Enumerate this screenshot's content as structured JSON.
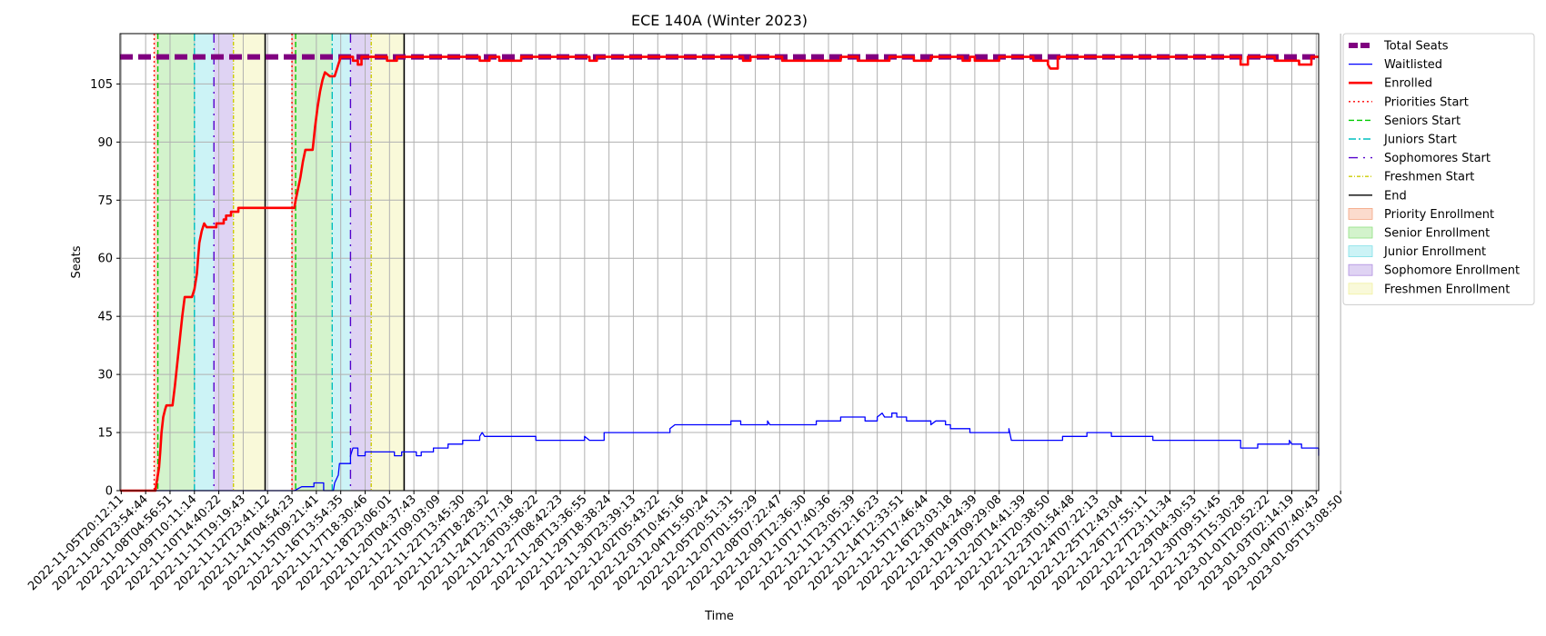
{
  "chart_data": {
    "type": "line",
    "title": "ECE 140A (Winter 2023)",
    "xlabel": "Time",
    "ylabel": "Seats",
    "ylim": [
      0,
      118
    ],
    "yticks": [
      0,
      15,
      30,
      45,
      60,
      75,
      90,
      105
    ],
    "grid": true,
    "legend_position": "outside-top-right",
    "x_tick_labels": [
      "2022-11-05T20:12:11",
      "2022-11-06T23:54:44",
      "2022-11-08T04:56:51",
      "2022-11-09T10:11:14",
      "2022-11-10T14:40:22",
      "2022-11-11T19:19:43",
      "2022-11-12T23:41:12",
      "2022-11-14T04:54:23",
      "2022-11-15T09:21:41",
      "2022-11-16T13:54:35",
      "2022-11-17T18:30:46",
      "2022-11-18T23:06:01",
      "2022-11-20T04:37:43",
      "2022-11-21T09:03:09",
      "2022-11-22T13:45:30",
      "2022-11-23T18:28:32",
      "2022-11-24T23:17:18",
      "2022-11-26T03:58:22",
      "2022-11-27T08:42:23",
      "2022-11-28T13:36:55",
      "2022-11-29T18:38:24",
      "2022-11-30T23:39:13",
      "2022-12-02T05:43:22",
      "2022-12-03T10:45:16",
      "2022-12-04T15:50:24",
      "2022-12-05T20:51:31",
      "2022-12-07T01:55:29",
      "2022-12-08T07:22:47",
      "2022-12-09T12:36:30",
      "2022-12-10T17:40:36",
      "2022-12-11T23:05:39",
      "2022-12-13T12:16:23",
      "2022-12-14T12:33:51",
      "2022-12-15T17:46:44",
      "2022-12-16T23:03:18",
      "2022-12-18T04:24:39",
      "2022-12-19T09:29:08",
      "2022-12-20T14:41:39",
      "2022-12-21T20:38:50",
      "2022-12-23T01:54:48",
      "2022-12-24T07:22:13",
      "2022-12-25T12:43:04",
      "2022-12-26T17:55:11",
      "2022-12-27T23:11:34",
      "2022-12-29T04:30:53",
      "2022-12-30T09:51:45",
      "2022-12-31T15:30:28",
      "2023-01-01T20:52:22",
      "2023-01-03T02:14:19",
      "2023-01-04T07:40:43",
      "2023-01-05T13:08:50"
    ],
    "x_extent": [
      -0.05,
      49.1
    ],
    "series": [
      {
        "name": "Total Seats",
        "color": "#800080",
        "style": "dashed-thick",
        "points": [
          [
            -0.05,
            112
          ],
          [
            49.1,
            112
          ]
        ]
      },
      {
        "name": "Waitlisted",
        "color": "#0000ff",
        "style": "solid-thin",
        "points": [
          [
            -0.05,
            0
          ],
          [
            7.1,
            0
          ],
          [
            7.4,
            1
          ],
          [
            7.9,
            1
          ],
          [
            7.9,
            2
          ],
          [
            8.3,
            2
          ],
          [
            8.3,
            0
          ],
          [
            8.7,
            0
          ],
          [
            8.75,
            2
          ],
          [
            8.9,
            4
          ],
          [
            8.95,
            7
          ],
          [
            9.4,
            7
          ],
          [
            9.4,
            9
          ],
          [
            9.5,
            11
          ],
          [
            9.7,
            11
          ],
          [
            9.7,
            9
          ],
          [
            10.0,
            9
          ],
          [
            10.0,
            10
          ],
          [
            11.2,
            10
          ],
          [
            11.2,
            9
          ],
          [
            11.5,
            9
          ],
          [
            11.5,
            10
          ],
          [
            12.1,
            10
          ],
          [
            12.1,
            9
          ],
          [
            12.3,
            9
          ],
          [
            12.3,
            10
          ],
          [
            12.8,
            10
          ],
          [
            12.8,
            11
          ],
          [
            13.4,
            11
          ],
          [
            13.4,
            12
          ],
          [
            14.0,
            12
          ],
          [
            14.0,
            13
          ],
          [
            14.7,
            13
          ],
          [
            14.7,
            14
          ],
          [
            14.8,
            15
          ],
          [
            14.9,
            14
          ],
          [
            17.0,
            14
          ],
          [
            17.0,
            13
          ],
          [
            19.0,
            13
          ],
          [
            19.0,
            14
          ],
          [
            19.2,
            13
          ],
          [
            19.8,
            13
          ],
          [
            19.8,
            15
          ],
          [
            22.5,
            15
          ],
          [
            22.5,
            16
          ],
          [
            22.7,
            17
          ],
          [
            25.0,
            17
          ],
          [
            25.0,
            18
          ],
          [
            25.4,
            18
          ],
          [
            25.4,
            17
          ],
          [
            26.5,
            17
          ],
          [
            26.5,
            18
          ],
          [
            26.6,
            17
          ],
          [
            28.5,
            17
          ],
          [
            28.5,
            18
          ],
          [
            29.5,
            18
          ],
          [
            29.5,
            19
          ],
          [
            30.5,
            19
          ],
          [
            30.5,
            18
          ],
          [
            31.0,
            18
          ],
          [
            31.0,
            19
          ],
          [
            31.2,
            20
          ],
          [
            31.3,
            19
          ],
          [
            31.6,
            19
          ],
          [
            31.6,
            20
          ],
          [
            31.8,
            20
          ],
          [
            31.8,
            19
          ],
          [
            32.2,
            19
          ],
          [
            32.2,
            18
          ],
          [
            33.2,
            18
          ],
          [
            33.2,
            17
          ],
          [
            33.4,
            18
          ],
          [
            33.8,
            18
          ],
          [
            33.8,
            17
          ],
          [
            34.0,
            17
          ],
          [
            34.0,
            16
          ],
          [
            34.8,
            16
          ],
          [
            34.8,
            15
          ],
          [
            36.4,
            15
          ],
          [
            36.4,
            16
          ],
          [
            36.5,
            13
          ],
          [
            38.6,
            13
          ],
          [
            38.6,
            14
          ],
          [
            39.6,
            14
          ],
          [
            39.6,
            15
          ],
          [
            40.6,
            15
          ],
          [
            40.6,
            14
          ],
          [
            42.3,
            14
          ],
          [
            42.3,
            13
          ],
          [
            45.9,
            13
          ],
          [
            45.9,
            11
          ],
          [
            46.6,
            11
          ],
          [
            46.6,
            12
          ],
          [
            47.9,
            12
          ],
          [
            47.9,
            13
          ],
          [
            48.0,
            12
          ],
          [
            48.4,
            12
          ],
          [
            48.4,
            11
          ],
          [
            49.3,
            11
          ],
          [
            49.3,
            9
          ],
          [
            49.1,
            9
          ]
        ]
      },
      {
        "name": "Enrolled",
        "color": "#ff0000",
        "style": "solid-thick",
        "points": [
          [
            -0.05,
            0
          ],
          [
            1.4,
            0
          ],
          [
            1.45,
            2
          ],
          [
            1.55,
            6
          ],
          [
            1.6,
            10
          ],
          [
            1.65,
            15
          ],
          [
            1.72,
            19
          ],
          [
            1.8,
            21
          ],
          [
            1.85,
            22
          ],
          [
            2.1,
            22
          ],
          [
            2.2,
            27
          ],
          [
            2.3,
            33
          ],
          [
            2.4,
            39
          ],
          [
            2.5,
            45
          ],
          [
            2.6,
            50
          ],
          [
            2.9,
            50
          ],
          [
            3.0,
            52
          ],
          [
            3.1,
            56
          ],
          [
            3.15,
            60
          ],
          [
            3.2,
            64
          ],
          [
            3.3,
            67
          ],
          [
            3.4,
            69
          ],
          [
            3.5,
            68
          ],
          [
            3.9,
            68
          ],
          [
            3.9,
            69
          ],
          [
            4.2,
            69
          ],
          [
            4.2,
            70
          ],
          [
            4.3,
            70
          ],
          [
            4.3,
            71
          ],
          [
            4.5,
            71
          ],
          [
            4.5,
            72
          ],
          [
            4.8,
            72
          ],
          [
            4.8,
            73
          ],
          [
            7.1,
            73
          ],
          [
            7.15,
            75
          ],
          [
            7.25,
            78
          ],
          [
            7.35,
            81
          ],
          [
            7.45,
            85
          ],
          [
            7.55,
            88
          ],
          [
            7.85,
            88
          ],
          [
            7.95,
            94
          ],
          [
            8.05,
            99
          ],
          [
            8.15,
            103
          ],
          [
            8.25,
            106
          ],
          [
            8.35,
            108
          ],
          [
            8.55,
            107
          ],
          [
            8.75,
            107
          ],
          [
            8.9,
            110
          ],
          [
            9.0,
            112
          ],
          [
            9.5,
            112
          ],
          [
            9.5,
            111
          ],
          [
            9.7,
            111
          ],
          [
            9.7,
            110
          ],
          [
            9.85,
            110
          ],
          [
            9.85,
            112
          ],
          [
            10.9,
            112
          ],
          [
            10.9,
            111
          ],
          [
            11.3,
            111
          ],
          [
            11.3,
            112
          ],
          [
            14.7,
            112
          ],
          [
            14.7,
            111
          ],
          [
            15.1,
            111
          ],
          [
            15.1,
            112
          ],
          [
            15.5,
            112
          ],
          [
            15.5,
            111
          ],
          [
            16.4,
            111
          ],
          [
            16.4,
            112
          ],
          [
            19.2,
            112
          ],
          [
            19.2,
            111
          ],
          [
            19.5,
            111
          ],
          [
            19.5,
            112
          ],
          [
            25.5,
            112
          ],
          [
            25.5,
            111
          ],
          [
            25.8,
            111
          ],
          [
            25.8,
            112
          ],
          [
            27.1,
            112
          ],
          [
            27.1,
            111
          ],
          [
            29.5,
            111
          ],
          [
            29.5,
            112
          ],
          [
            30.2,
            112
          ],
          [
            30.2,
            111
          ],
          [
            31.5,
            111
          ],
          [
            31.5,
            112
          ],
          [
            32.5,
            112
          ],
          [
            32.5,
            111
          ],
          [
            33.2,
            111
          ],
          [
            33.2,
            112
          ],
          [
            34.5,
            112
          ],
          [
            34.5,
            111
          ],
          [
            34.8,
            111
          ],
          [
            34.8,
            112
          ],
          [
            35.0,
            112
          ],
          [
            35.0,
            111
          ],
          [
            36.0,
            111
          ],
          [
            36.0,
            112
          ],
          [
            37.4,
            112
          ],
          [
            37.4,
            111
          ],
          [
            38.0,
            111
          ],
          [
            38.0,
            110
          ],
          [
            38.1,
            109
          ],
          [
            38.4,
            109
          ],
          [
            38.4,
            112
          ],
          [
            39.0,
            112
          ],
          [
            45.9,
            112
          ],
          [
            45.9,
            110
          ],
          [
            46.2,
            110
          ],
          [
            46.2,
            112
          ],
          [
            47.3,
            112
          ],
          [
            47.3,
            111
          ],
          [
            48.3,
            111
          ],
          [
            48.3,
            110
          ],
          [
            48.8,
            110
          ],
          [
            48.8,
            112
          ],
          [
            49.1,
            112
          ]
        ]
      }
    ],
    "vlines": [
      {
        "name": "Priorities Start",
        "color": "#ff0000",
        "style": "dotted",
        "x": [
          1.35,
          7.0
        ]
      },
      {
        "name": "Seniors Start",
        "color": "#00cc00",
        "style": "dashed",
        "x": [
          1.5,
          7.15
        ]
      },
      {
        "name": "Juniors Start",
        "color": "#00bfbf",
        "style": "dashdot",
        "x": [
          3.0,
          8.65
        ]
      },
      {
        "name": "Sophomores Start",
        "color": "#5500cc",
        "style": "dashdot-sparse",
        "x": [
          3.8,
          9.4
        ]
      },
      {
        "name": "Freshmen Start",
        "color": "#cccc00",
        "style": "dashdot-fine",
        "x": [
          4.6,
          10.25
        ]
      },
      {
        "name": "End",
        "color": "#000000",
        "style": "solid",
        "x": [
          5.9,
          11.6
        ]
      }
    ],
    "spans": [
      {
        "name": "Priority Enrollment",
        "color": "#f4a582",
        "ranges": [
          [
            1.35,
            1.5
          ],
          [
            7.0,
            7.15
          ]
        ]
      },
      {
        "name": "Senior Enrollment",
        "color": "#90e080",
        "ranges": [
          [
            1.5,
            3.0
          ],
          [
            7.15,
            8.65
          ]
        ]
      },
      {
        "name": "Junior Enrollment",
        "color": "#80e0e8",
        "ranges": [
          [
            3.0,
            3.8
          ],
          [
            8.65,
            9.4
          ]
        ]
      },
      {
        "name": "Sophomore Enrollment",
        "color": "#b090e0",
        "ranges": [
          [
            3.8,
            4.6
          ],
          [
            9.4,
            10.25
          ]
        ]
      },
      {
        "name": "Freshmen Enrollment",
        "color": "#f0f0a0",
        "ranges": [
          [
            4.6,
            5.9
          ],
          [
            10.25,
            11.6
          ]
        ]
      }
    ],
    "legend": [
      "Total Seats",
      "Waitlisted",
      "Enrolled",
      "Priorities Start",
      "Seniors Start",
      "Juniors Start",
      "Sophomores Start",
      "Freshmen Start",
      "End",
      "Priority Enrollment",
      "Senior Enrollment",
      "Junior Enrollment",
      "Sophomore Enrollment",
      "Freshmen Enrollment"
    ]
  }
}
